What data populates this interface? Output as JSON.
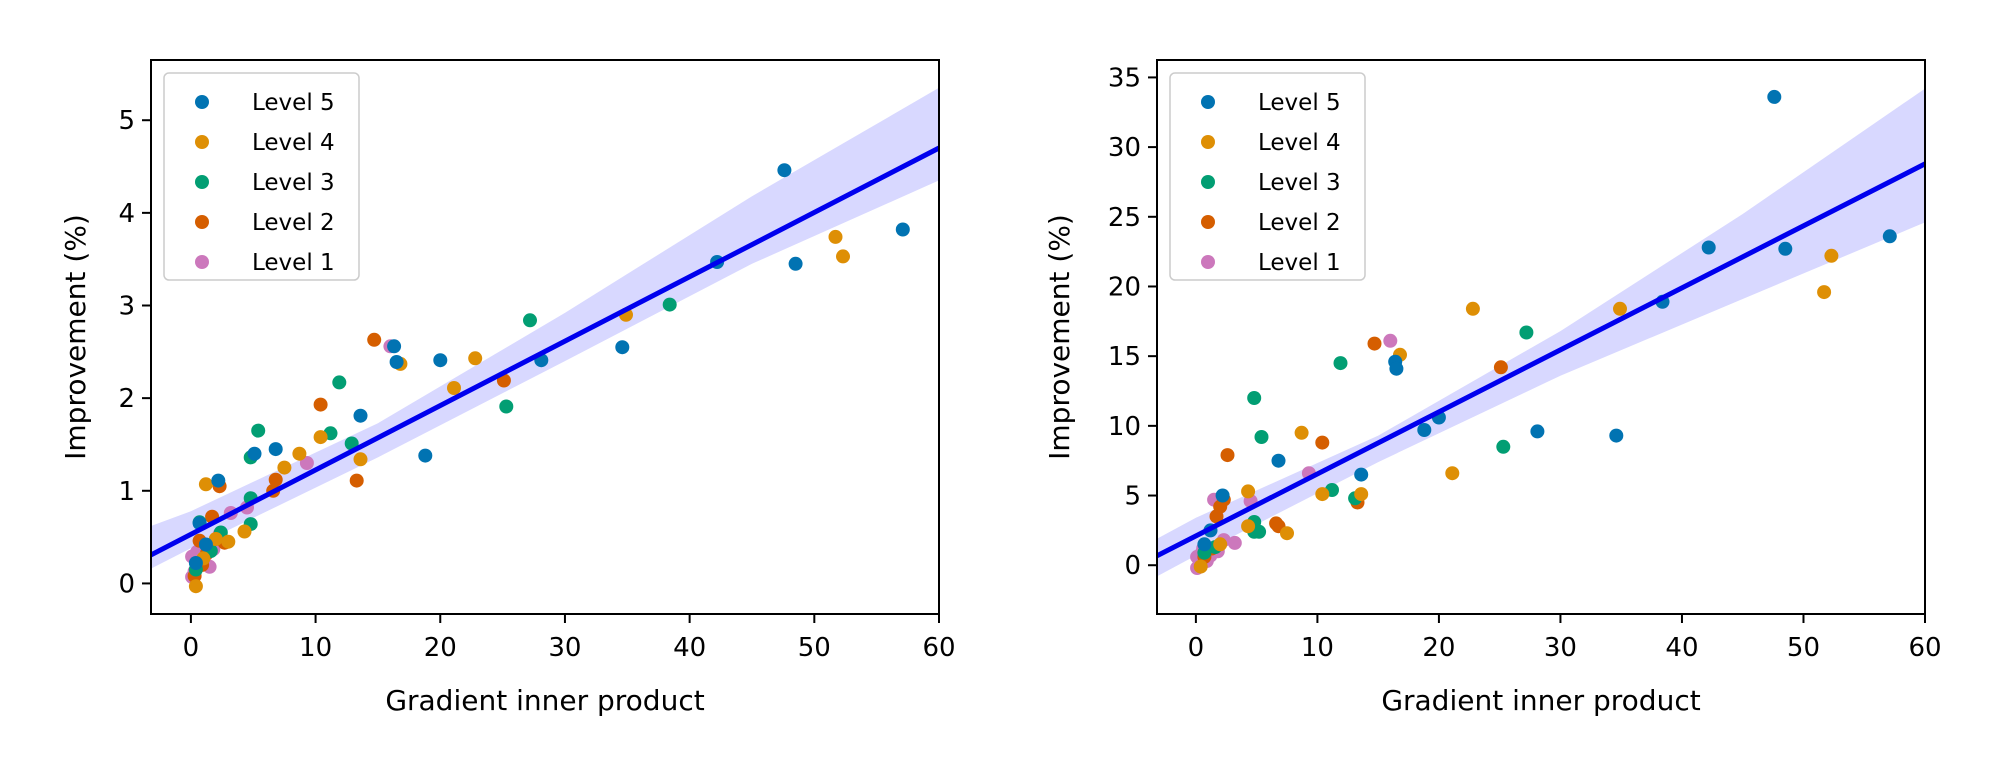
{
  "chart_data": [
    {
      "type": "scatter",
      "title": "",
      "xlabel": "Gradient inner product",
      "ylabel": "Improvement (%)",
      "xlim": [
        -3.2,
        60
      ],
      "ylim": [
        -0.33,
        5.65
      ],
      "xticks": [
        "0",
        "10",
        "20",
        "30",
        "40",
        "50",
        "60"
      ],
      "xtick_values": [
        0,
        10,
        20,
        30,
        40,
        50,
        60
      ],
      "yticks": [
        "0",
        "1",
        "2",
        "3",
        "4",
        "5"
      ],
      "ytick_values": [
        0,
        1,
        2,
        3,
        4,
        5
      ],
      "legend_position": "upper-left",
      "fit_line": {
        "intercept": 0.53,
        "slope": 0.0695,
        "color": "#0000ee"
      },
      "confidence_band": {
        "x": [
          -3.2,
          0,
          15,
          30,
          45,
          60
        ],
        "lower": [
          0.16,
          0.38,
          1.36,
          2.4,
          3.45,
          4.35
        ],
        "upper": [
          0.62,
          0.78,
          1.73,
          2.92,
          4.18,
          5.35
        ],
        "color": "#d8d8ff"
      },
      "series": [
        {
          "name": "Level 5",
          "color": "#0173b2",
          "points": [
            [
              47.6,
              4.46
            ],
            [
              57.1,
              3.82
            ],
            [
              42.2,
              3.47
            ],
            [
              48.5,
              3.45
            ],
            [
              34.6,
              2.55
            ],
            [
              28.1,
              2.41
            ],
            [
              20.0,
              2.41
            ],
            [
              16.5,
              2.39
            ],
            [
              16.3,
              2.56
            ],
            [
              13.6,
              1.81
            ],
            [
              18.8,
              1.38
            ],
            [
              6.8,
              1.45
            ],
            [
              5.1,
              1.4
            ],
            [
              2.2,
              1.11
            ],
            [
              0.7,
              0.65
            ],
            [
              1.2,
              0.42
            ],
            [
              0.4,
              0.22
            ]
          ]
        },
        {
          "name": "Level 4",
          "color": "#de8f05",
          "points": [
            [
              51.7,
              3.74
            ],
            [
              52.3,
              3.53
            ],
            [
              34.9,
              2.9
            ],
            [
              22.8,
              2.43
            ],
            [
              16.8,
              2.37
            ],
            [
              21.1,
              2.11
            ],
            [
              10.4,
              1.58
            ],
            [
              13.6,
              1.34
            ],
            [
              8.7,
              1.4
            ],
            [
              7.5,
              1.25
            ],
            [
              1.2,
              1.07
            ],
            [
              4.3,
              0.56
            ],
            [
              0.4,
              -0.03
            ],
            [
              3.0,
              0.45
            ],
            [
              2.0,
              0.48
            ],
            [
              1.0,
              0.27
            ]
          ]
        },
        {
          "name": "Level 3",
          "color": "#029e73",
          "points": [
            [
              27.2,
              2.84
            ],
            [
              38.4,
              3.01
            ],
            [
              11.9,
              2.17
            ],
            [
              25.3,
              1.91
            ],
            [
              11.2,
              1.62
            ],
            [
              12.9,
              1.51
            ],
            [
              5.4,
              1.65
            ],
            [
              4.8,
              1.36
            ],
            [
              4.8,
              0.92
            ],
            [
              4.8,
              0.64
            ],
            [
              0.7,
              0.66
            ],
            [
              1.6,
              0.35
            ],
            [
              0.4,
              0.15
            ],
            [
              2.4,
              0.55
            ]
          ]
        },
        {
          "name": "Level 2",
          "color": "#d55e00",
          "points": [
            [
              14.7,
              2.63
            ],
            [
              25.1,
              2.19
            ],
            [
              10.4,
              1.93
            ],
            [
              13.3,
              1.11
            ],
            [
              6.8,
              1.12
            ],
            [
              6.6,
              1.0
            ],
            [
              2.3,
              1.05
            ],
            [
              1.7,
              0.72
            ],
            [
              2.7,
              0.44
            ],
            [
              0.7,
              0.46
            ],
            [
              1.3,
              0.33
            ],
            [
              0.3,
              0.08
            ],
            [
              0.9,
              0.2
            ]
          ]
        },
        {
          "name": "Level 1",
          "color": "#cc78bc",
          "points": [
            [
              16.0,
              2.56
            ],
            [
              9.3,
              1.3
            ],
            [
              4.5,
              0.82
            ],
            [
              3.2,
              0.76
            ],
            [
              2.3,
              0.53
            ],
            [
              1.8,
              0.37
            ],
            [
              1.5,
              0.18
            ],
            [
              1.2,
              0.31
            ],
            [
              0.9,
              0.26
            ],
            [
              0.6,
              0.2
            ],
            [
              0.3,
              0.13
            ],
            [
              0.1,
              0.29
            ],
            [
              0.1,
              0.07
            ],
            [
              0.5,
              0.34
            ],
            [
              1.0,
              0.4
            ]
          ]
        }
      ]
    },
    {
      "type": "scatter",
      "title": "",
      "xlabel": "Gradient inner product",
      "ylabel": "Improvement (%)",
      "xlim": [
        -3.2,
        60
      ],
      "ylim": [
        -3.5,
        36.25
      ],
      "xticks": [
        "0",
        "10",
        "20",
        "30",
        "40",
        "50",
        "60"
      ],
      "xtick_values": [
        0,
        10,
        20,
        30,
        40,
        50,
        60
      ],
      "yticks": [
        "0",
        "5",
        "10",
        "15",
        "20",
        "25",
        "30",
        "35"
      ],
      "ytick_values": [
        0,
        5,
        10,
        15,
        20,
        25,
        30,
        35
      ],
      "legend_position": "upper-left",
      "fit_line": {
        "intercept": 2.1,
        "slope": 0.445,
        "color": "#0000ee"
      },
      "confidence_band": {
        "x": [
          -3.2,
          0,
          15,
          30,
          45,
          60
        ],
        "lower": [
          -0.8,
          0.7,
          7.4,
          13.6,
          19.1,
          24.6
        ],
        "upper": [
          1.9,
          3.4,
          9.3,
          16.8,
          25.2,
          34.2
        ],
        "color": "#d8d8ff"
      },
      "series": [
        {
          "name": "Level 5",
          "color": "#0173b2",
          "points": [
            [
              47.6,
              33.6
            ],
            [
              57.1,
              23.6
            ],
            [
              42.2,
              22.8
            ],
            [
              48.5,
              22.7
            ],
            [
              38.4,
              18.9
            ],
            [
              16.4,
              14.6
            ],
            [
              16.5,
              14.1
            ],
            [
              20.0,
              10.6
            ],
            [
              18.8,
              9.7
            ],
            [
              28.1,
              9.6
            ],
            [
              34.6,
              9.3
            ],
            [
              6.8,
              7.5
            ],
            [
              13.6,
              6.5
            ],
            [
              2.2,
              5.0
            ],
            [
              0.7,
              1.5
            ],
            [
              1.2,
              2.5
            ]
          ]
        },
        {
          "name": "Level 4",
          "color": "#de8f05",
          "points": [
            [
              22.8,
              18.4
            ],
            [
              34.9,
              18.4
            ],
            [
              52.3,
              22.2
            ],
            [
              51.7,
              19.6
            ],
            [
              16.8,
              15.1
            ],
            [
              8.7,
              9.5
            ],
            [
              21.1,
              6.6
            ],
            [
              4.3,
              5.3
            ],
            [
              10.4,
              5.1
            ],
            [
              13.6,
              5.1
            ],
            [
              7.5,
              2.3
            ],
            [
              4.3,
              2.8
            ],
            [
              0.4,
              -0.1
            ],
            [
              2.0,
              1.5
            ]
          ]
        },
        {
          "name": "Level 3",
          "color": "#029e73",
          "points": [
            [
              27.2,
              16.7
            ],
            [
              11.9,
              14.5
            ],
            [
              4.8,
              12.0
            ],
            [
              5.4,
              9.2
            ],
            [
              25.3,
              8.5
            ],
            [
              11.2,
              5.4
            ],
            [
              13.1,
              4.8
            ],
            [
              4.8,
              3.1
            ],
            [
              4.8,
              2.4
            ],
            [
              5.2,
              2.4
            ],
            [
              1.6,
              1.3
            ],
            [
              0.7,
              0.9
            ]
          ]
        },
        {
          "name": "Level 2",
          "color": "#d55e00",
          "points": [
            [
              14.7,
              15.9
            ],
            [
              25.1,
              14.2
            ],
            [
              2.6,
              7.9
            ],
            [
              10.4,
              8.8
            ],
            [
              2.3,
              4.7
            ],
            [
              1.7,
              3.5
            ],
            [
              6.6,
              3.0
            ],
            [
              6.8,
              2.8
            ],
            [
              13.3,
              4.5
            ],
            [
              2.0,
              4.2
            ],
            [
              0.7,
              0.6
            ],
            [
              1.3,
              1.2
            ]
          ]
        },
        {
          "name": "Level 1",
          "color": "#cc78bc",
          "points": [
            [
              16.0,
              16.1
            ],
            [
              9.3,
              6.6
            ],
            [
              4.5,
              4.6
            ],
            [
              1.5,
              4.7
            ],
            [
              2.3,
              1.8
            ],
            [
              3.2,
              1.6
            ],
            [
              1.8,
              1.0
            ],
            [
              1.2,
              0.7
            ],
            [
              0.9,
              0.3
            ],
            [
              0.6,
              1.2
            ],
            [
              0.3,
              0.5
            ],
            [
              0.1,
              -0.2
            ],
            [
              0.1,
              0.6
            ],
            [
              0.5,
              0.9
            ]
          ]
        }
      ]
    }
  ]
}
